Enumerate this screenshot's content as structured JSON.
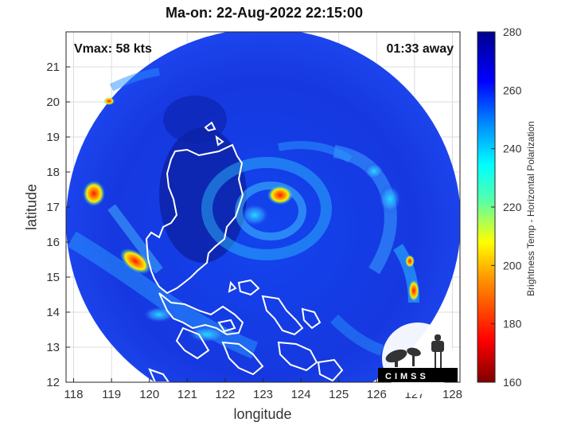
{
  "title": "Ma-on: 22-Aug-2022 22:15:00",
  "annotations": {
    "vmax": "Vmax: 58 kts",
    "time_away": "01:33 away"
  },
  "axes": {
    "xlabel": "longitude",
    "ylabel": "latitude",
    "xlim": [
      117.8,
      128.2
    ],
    "ylim": [
      12,
      22
    ],
    "xticks": [
      118,
      119,
      120,
      121,
      122,
      123,
      124,
      125,
      126,
      127,
      128
    ],
    "yticks": [
      12,
      13,
      14,
      15,
      16,
      17,
      18,
      19,
      20,
      21
    ],
    "grid": true
  },
  "colorbar": {
    "label": "Brightness Temp - Horizontal Polarization",
    "range": [
      160,
      280
    ],
    "ticks": [
      160,
      180,
      200,
      220,
      240,
      260,
      280
    ],
    "colormap": [
      "#7f0000",
      "#ff0000",
      "#ffff00",
      "#00ffff",
      "#0000ff",
      "#00008f"
    ]
  },
  "logo": {
    "text": "CIMSS"
  },
  "colors": {
    "background_swath": "#1a3fe0",
    "eye_hot": "#ff2a00",
    "coastline": "#ffffff"
  }
}
